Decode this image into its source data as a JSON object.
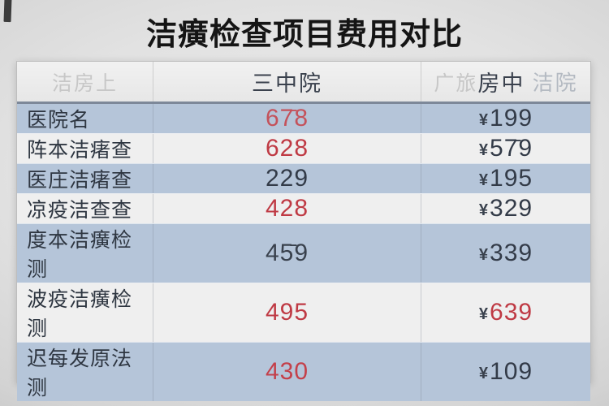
{
  "title": "洁癀检查项目费用对比",
  "colors": {
    "accent_red": "#bf3a44",
    "dark_text": "#333b48",
    "row_blue": "#b5c5d9",
    "row_light": "#efefef",
    "header_bg": "#ececec",
    "faint_header_text": "#c7c7c7"
  },
  "table": {
    "header": {
      "col1": "洁房上",
      "col2": "三中院",
      "col3_p1": "广旅",
      "col3_p2": "房中",
      "col3_p3": " 洁院"
    },
    "rows": [
      {
        "label": "医院名",
        "a": {
          "text": "67̄8",
          "color": "#c4525b"
        },
        "b": {
          "currency": "¥",
          "text": "199",
          "color": "#333b48"
        }
      },
      {
        "label": "阵本洁瘏查",
        "a": {
          "text": "628",
          "color": "#bf3a44"
        },
        "b": {
          "currency": "¥",
          "text": "57̄9",
          "color": "#333b48"
        }
      },
      {
        "label": "医庄洁瘏查",
        "a": {
          "text": "229",
          "color": "#333b48"
        },
        "b": {
          "currency": "¥",
          "text": "195",
          "color": "#333b48"
        }
      },
      {
        "label": "凉疫洁查查",
        "a": {
          "text": "428",
          "color": "#bf3a44"
        },
        "b": {
          "currency": "¥",
          "text": "329",
          "color": "#333b48"
        }
      },
      {
        "label": "度本洁癀检测",
        "a": {
          "text": "45̄9",
          "color": "#39414d"
        },
        "b": {
          "currency": "¥",
          "text": "339",
          "color": "#333b48"
        }
      },
      {
        "label": "波疫洁癀检测",
        "a": {
          "text": "495",
          "color": "#bf3a44"
        },
        "b": {
          "currency": "¥",
          "text": "639",
          "color": "#bf3a44"
        }
      },
      {
        "label": "迟每发原法测",
        "a": {
          "text": "430",
          "color": "#c4404a"
        },
        "b": {
          "currency": "¥",
          "text": "109",
          "color": "#333b48"
        }
      }
    ]
  },
  "chart_data": {
    "type": "table",
    "title": "洁癀检查项目费用对比",
    "columns": [
      "洁房上",
      "三中院",
      "广旅房中 洁院"
    ],
    "rows": [
      [
        "医院名",
        678,
        "¥199"
      ],
      [
        "阵本洁瘏查",
        628,
        "¥579"
      ],
      [
        "医庄洁瘏查",
        229,
        "¥195"
      ],
      [
        "凉疫洁查查",
        428,
        "¥329"
      ],
      [
        "度本洁癀检测",
        459,
        "¥339"
      ],
      [
        "波疫洁癀检测",
        495,
        "¥639"
      ],
      [
        "迟每发原法测",
        430,
        "¥109"
      ]
    ],
    "legend_position": "none",
    "grid": true
  }
}
